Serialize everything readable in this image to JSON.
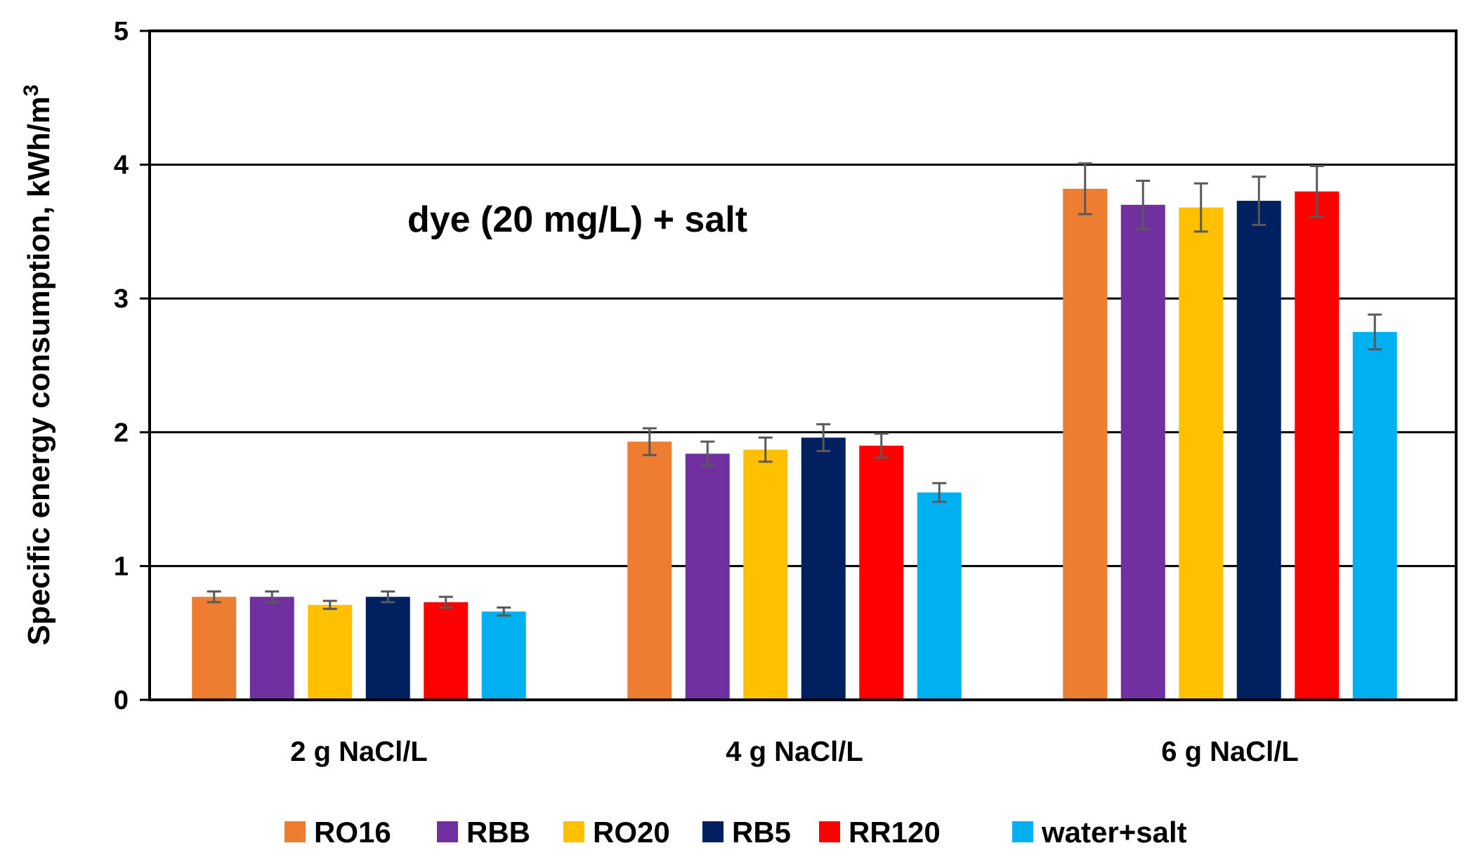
{
  "chart_data": {
    "type": "bar",
    "title": "",
    "annotation": "dye (20 mg/L) + salt",
    "xlabel": "",
    "ylabel": "Specific energy consumption,  kWh/m",
    "ylabel_superscript": "3",
    "ylim": [
      0,
      5
    ],
    "yticks": [
      "0",
      "1",
      "2",
      "3",
      "4",
      "5"
    ],
    "grid": true,
    "legend_position": "bottom",
    "categories": [
      "2 g NaCl/L",
      "4 g NaCl/L",
      "6 g NaCl/L"
    ],
    "series": [
      {
        "name": "RO16",
        "color": "#ED7D31",
        "values": [
          0.77,
          1.93,
          3.82
        ],
        "errors": [
          0.04,
          0.1,
          0.19
        ]
      },
      {
        "name": "RBB",
        "color": "#7030A0",
        "values": [
          0.77,
          1.84,
          3.7
        ],
        "errors": [
          0.04,
          0.09,
          0.18
        ]
      },
      {
        "name": "RO20",
        "color": "#FFC000",
        "values": [
          0.71,
          1.87,
          3.68
        ],
        "errors": [
          0.03,
          0.09,
          0.18
        ]
      },
      {
        "name": "RB5",
        "color": "#002060",
        "values": [
          0.77,
          1.96,
          3.73
        ],
        "errors": [
          0.04,
          0.1,
          0.18
        ]
      },
      {
        "name": "RR120",
        "color": "#FF0000",
        "values": [
          0.73,
          1.9,
          3.8
        ],
        "errors": [
          0.04,
          0.09,
          0.19
        ]
      },
      {
        "name": "water+salt",
        "color": "#00B0F0",
        "values": [
          0.66,
          1.55,
          2.75
        ],
        "errors": [
          0.03,
          0.07,
          0.13
        ]
      }
    ]
  }
}
